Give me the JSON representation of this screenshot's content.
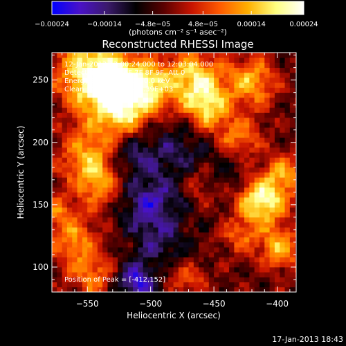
{
  "chart_data": {
    "type": "heatmap",
    "title": "Reconstructed RHESSI Image",
    "xlabel": "Heliocentric X (arcsec)",
    "ylabel": "Heliocentric Y (arcsec)",
    "xlim": [
      -578,
      -385
    ],
    "ylim": [
      80,
      272
    ],
    "x_ticks": [
      -550,
      -500,
      -450,
      -400
    ],
    "y_ticks": [
      100,
      150,
      200,
      250
    ],
    "x_tick_labels": [
      "−550",
      "−500",
      "−450",
      "−400"
    ],
    "y_tick_labels": [
      "100",
      "150",
      "200",
      "250"
    ],
    "colorbar": {
      "min": -0.00024,
      "max": 0.00024,
      "tick_values": [
        -0.00024,
        -0.00014,
        -4.8e-05,
        4.8e-05,
        0.00014,
        0.00024
      ],
      "tick_labels": [
        "−0.00024",
        "−0.00014",
        "−4.8e−05",
        "4.8e−05",
        "0.00014",
        "0.00024"
      ],
      "units": "(photons cm⁻² s⁻¹ asec⁻²)",
      "colors": [
        "#0000ff",
        "#4a12c8",
        "#3a1a6a",
        "#000000",
        "#5a0000",
        "#c81400",
        "#ff5a00",
        "#ffb000",
        "#ffff80",
        "#ffffff"
      ]
    },
    "info_lines": [
      "12-Jan-2013 12:00:24.000 to 12:03:04.000",
      "Detectors: 3F 5F 6F 7F 8F 9F, Att 0",
      "Energy Range: 25.0 - 50.0 keV",
      "Clean    Total counts: 4.39E+03"
    ],
    "peak_text": "Position of Peak = [-412,152]",
    "peak": [
      -412,
      152
    ],
    "hot_spots": [
      {
        "x": -548,
        "y": 258,
        "v": 0.0002,
        "r": 20
      },
      {
        "x": -528,
        "y": 238,
        "v": 0.00022,
        "r": 18
      },
      {
        "x": -505,
        "y": 245,
        "v": 0.00018,
        "r": 16
      },
      {
        "x": -548,
        "y": 190,
        "v": 0.00016,
        "r": 16
      },
      {
        "x": -540,
        "y": 165,
        "v": 0.00012,
        "r": 14
      },
      {
        "x": -520,
        "y": 212,
        "v": 0.0001,
        "r": 12
      },
      {
        "x": -465,
        "y": 252,
        "v": 0.0002,
        "r": 15
      },
      {
        "x": -455,
        "y": 228,
        "v": 0.00018,
        "r": 12
      },
      {
        "x": -420,
        "y": 248,
        "v": 0.00016,
        "r": 14
      },
      {
        "x": -430,
        "y": 205,
        "v": 0.00012,
        "r": 12
      },
      {
        "x": -412,
        "y": 152,
        "v": 0.00024,
        "r": 13
      },
      {
        "x": -395,
        "y": 175,
        "v": 0.00014,
        "r": 12
      },
      {
        "x": -398,
        "y": 115,
        "v": 0.00016,
        "r": 12
      },
      {
        "x": -430,
        "y": 125,
        "v": 0.0001,
        "r": 10
      },
      {
        "x": -560,
        "y": 120,
        "v": 0.00014,
        "r": 14
      },
      {
        "x": -545,
        "y": 92,
        "v": 0.00012,
        "r": 12
      },
      {
        "x": -575,
        "y": 145,
        "v": 0.0001,
        "r": 10
      },
      {
        "x": -490,
        "y": 100,
        "v": 8e-05,
        "r": 10
      },
      {
        "x": -470,
        "y": 90,
        "v": 0.0001,
        "r": 10
      },
      {
        "x": -460,
        "y": 165,
        "v": 7e-05,
        "r": 10
      }
    ],
    "cold_spots": [
      {
        "x": -515,
        "y": 195,
        "v": -0.00012,
        "r": 16
      },
      {
        "x": -500,
        "y": 150,
        "v": -0.00014,
        "r": 18
      },
      {
        "x": -490,
        "y": 110,
        "v": -0.0001,
        "r": 14
      },
      {
        "x": -475,
        "y": 195,
        "v": -8e-05,
        "r": 14
      },
      {
        "x": -510,
        "y": 88,
        "v": -0.00016,
        "r": 12
      },
      {
        "x": -440,
        "y": 175,
        "v": -6e-05,
        "r": 10
      }
    ]
  },
  "footer": {
    "timestamp": "17-Jan-2013 18:43"
  }
}
